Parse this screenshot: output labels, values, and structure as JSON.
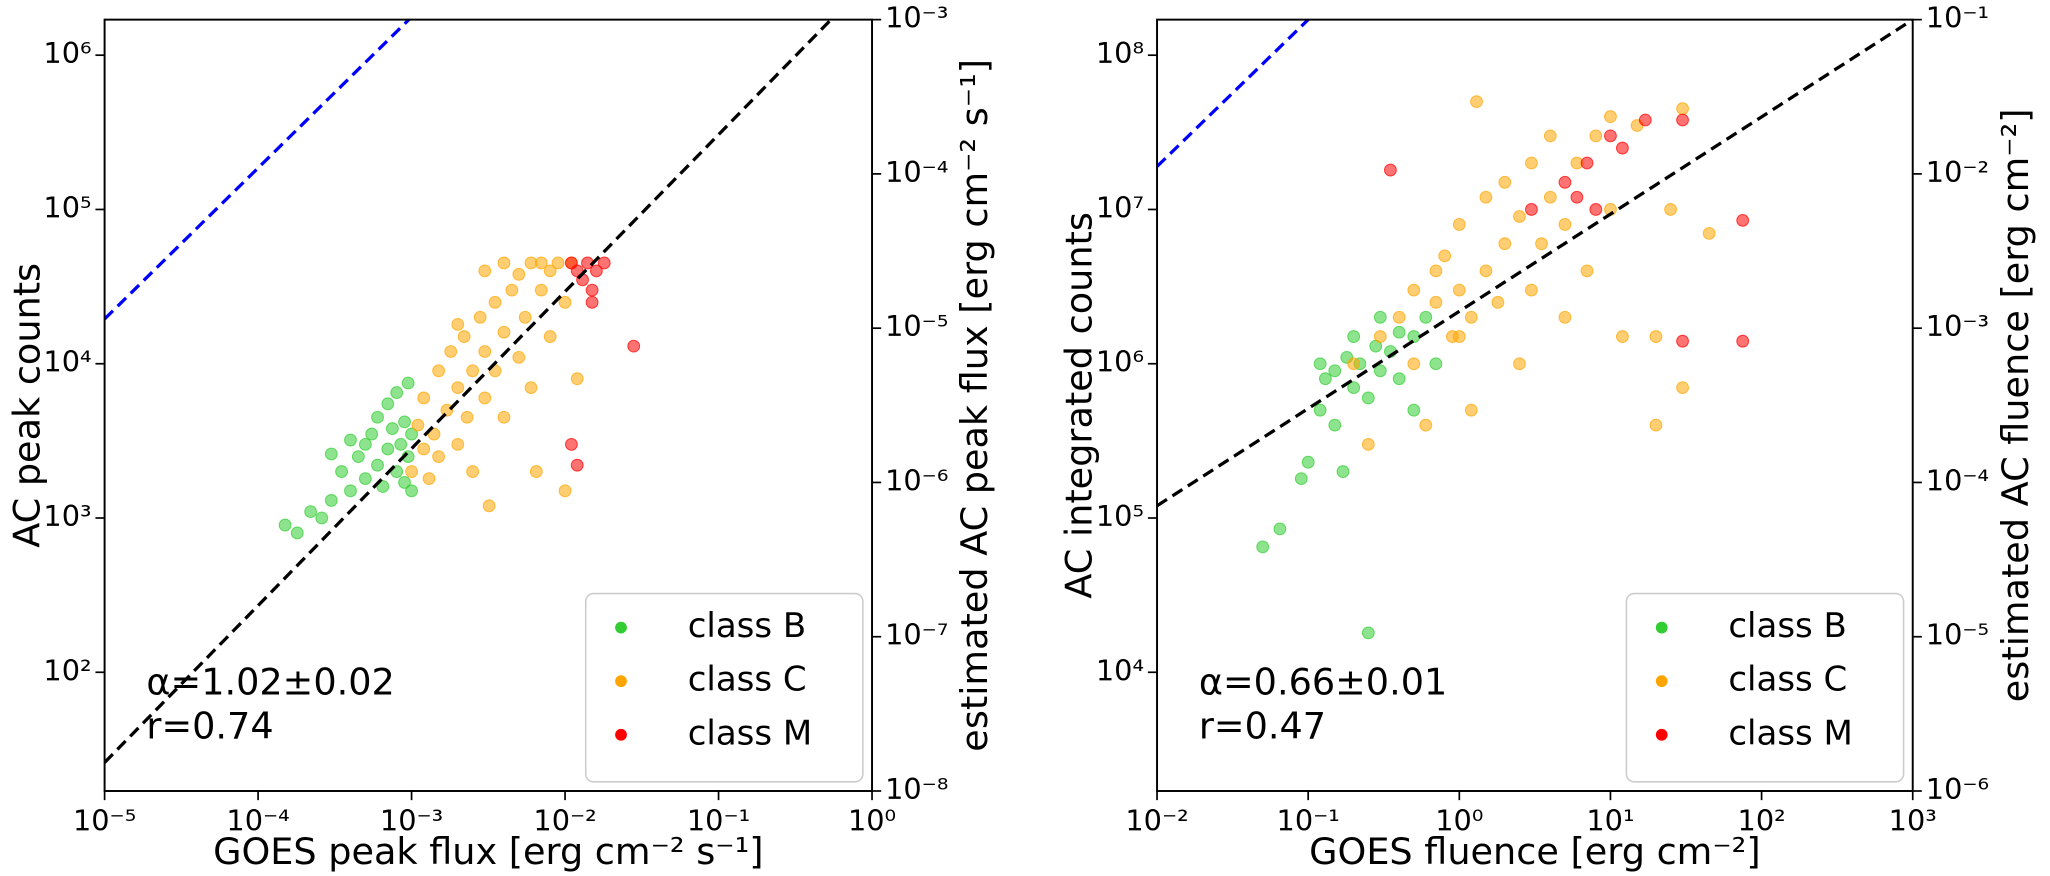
{
  "chart_data": [
    {
      "type": "scatter",
      "log_x": true,
      "log_y": true,
      "x_label": "GOES peak flux [erg cm⁻² s⁻¹]",
      "y_label": "AC peak counts",
      "y2_label": "estimated AC peak flux [erg cm⁻² s⁻¹]",
      "xlim": [
        1e-05,
        1
      ],
      "ylim": [
        17,
        1700000
      ],
      "y2lim": [
        1e-08,
        0.001
      ],
      "xticks": [
        {
          "value": 1e-05,
          "label": "10⁻⁵"
        },
        {
          "value": 0.0001,
          "label": "10⁻⁴"
        },
        {
          "value": 0.001,
          "label": "10⁻³"
        },
        {
          "value": 0.01,
          "label": "10⁻²"
        },
        {
          "value": 0.1,
          "label": "10⁻¹"
        },
        {
          "value": 1,
          "label": "10⁰"
        }
      ],
      "yticks": [
        {
          "value": 100,
          "label": "10²"
        },
        {
          "value": 1000,
          "label": "10³"
        },
        {
          "value": 10000,
          "label": "10⁴"
        },
        {
          "value": 100000,
          "label": "10⁵"
        },
        {
          "value": 1000000,
          "label": "10⁶"
        }
      ],
      "y2ticks": [
        {
          "value": 1e-08,
          "label": "10⁻⁸"
        },
        {
          "value": 1e-07,
          "label": "10⁻⁷"
        },
        {
          "value": 1e-06,
          "label": "10⁻⁶"
        },
        {
          "value": 1e-05,
          "label": "10⁻⁵"
        },
        {
          "value": 0.0001,
          "label": "10⁻⁴"
        },
        {
          "value": 0.001,
          "label": "10⁻³"
        }
      ],
      "legend_loc": "lower right",
      "annotations": [
        "α=1.02±0.02",
        "r=0.74"
      ],
      "series": [
        {
          "name": "class B",
          "color": "#32cd32",
          "x": [
            0.00015,
            0.00018,
            0.00022,
            0.00026,
            0.0003,
            0.00035,
            0.0004,
            0.00045,
            0.0005,
            0.0005,
            0.00055,
            0.0006,
            0.0006,
            0.00065,
            0.0007,
            0.0007,
            0.00075,
            0.0008,
            0.0008,
            0.00085,
            0.0009,
            0.0009,
            0.00095,
            0.00095,
            0.001,
            0.001,
            0.0003,
            0.0004
          ],
          "values": [
            900,
            800,
            1100,
            1000,
            1300,
            2000,
            1500,
            2500,
            3000,
            1800,
            3500,
            2200,
            4500,
            1600,
            2800,
            5500,
            3800,
            2000,
            6500,
            3000,
            4200,
            1700,
            2500,
            7500,
            3500,
            1500,
            2600,
            3200
          ]
        },
        {
          "name": "class C",
          "color": "#ffa500",
          "x": [
            0.001,
            0.0011,
            0.0012,
            0.0012,
            0.0013,
            0.0014,
            0.0015,
            0.0015,
            0.0017,
            0.0018,
            0.002,
            0.002,
            0.0022,
            0.0023,
            0.0025,
            0.0025,
            0.0028,
            0.003,
            0.003,
            0.0032,
            0.0035,
            0.0035,
            0.004,
            0.004,
            0.0045,
            0.005,
            0.005,
            0.0055,
            0.006,
            0.006,
            0.0065,
            0.007,
            0.007,
            0.008,
            0.008,
            0.009,
            0.01,
            0.01,
            0.011,
            0.012,
            0.002,
            0.003,
            0.004
          ],
          "values": [
            2000,
            4000,
            2800,
            6000,
            1800,
            3500,
            9000,
            2500,
            5000,
            12000,
            3000,
            7000,
            15000,
            4500,
            9000,
            2000,
            20000,
            6000,
            12000,
            1200,
            25000,
            9000,
            16000,
            4500,
            30000,
            11000,
            38000,
            20000,
            45000,
            7000,
            2000,
            30000,
            45000,
            15000,
            40000,
            45000,
            1500,
            25000,
            45000,
            8000,
            18000,
            40000,
            45000
          ]
        },
        {
          "name": "class M",
          "color": "#ff0000",
          "x": [
            0.011,
            0.012,
            0.013,
            0.014,
            0.015,
            0.016,
            0.018,
            0.028,
            0.011,
            0.012,
            0.015
          ],
          "values": [
            45000,
            40000,
            35000,
            45000,
            30000,
            40000,
            45000,
            13000,
            3000,
            2200,
            25000
          ]
        }
      ],
      "lines": [
        {
          "color": "#000000",
          "x": [
            1e-05,
            0.54
          ],
          "values": [
            26,
            1700000
          ]
        },
        {
          "color": "#0000ff",
          "x": [
            1e-05,
            0.00096
          ],
          "values": [
            19500,
            1700000
          ]
        }
      ]
    },
    {
      "type": "scatter",
      "log_x": true,
      "log_y": true,
      "x_label": "GOES fluence [erg cm⁻²]",
      "y_label": "AC integrated counts",
      "y2_label": "estimated AC fluence [erg cm⁻²]",
      "xlim": [
        0.01,
        1000
      ],
      "ylim": [
        1700,
        170000000
      ],
      "y2lim": [
        1e-06,
        0.1
      ],
      "xticks": [
        {
          "value": 0.01,
          "label": "10⁻²"
        },
        {
          "value": 0.1,
          "label": "10⁻¹"
        },
        {
          "value": 1,
          "label": "10⁰"
        },
        {
          "value": 10,
          "label": "10¹"
        },
        {
          "value": 100,
          "label": "10²"
        },
        {
          "value": 1000,
          "label": "10³"
        }
      ],
      "yticks": [
        {
          "value": 10000,
          "label": "10⁴"
        },
        {
          "value": 100000,
          "label": "10⁵"
        },
        {
          "value": 1000000,
          "label": "10⁶"
        },
        {
          "value": 10000000,
          "label": "10⁷"
        },
        {
          "value": 100000000,
          "label": "10⁸"
        }
      ],
      "y2ticks": [
        {
          "value": 1e-06,
          "label": "10⁻⁶"
        },
        {
          "value": 1e-05,
          "label": "10⁻⁵"
        },
        {
          "value": 0.0001,
          "label": "10⁻⁴"
        },
        {
          "value": 0.001,
          "label": "10⁻³"
        },
        {
          "value": 0.01,
          "label": "10⁻²"
        },
        {
          "value": 0.1,
          "label": "10⁻¹"
        }
      ],
      "legend_loc": "lower right",
      "annotations": [
        "α=0.66±0.01",
        "r=0.47"
      ],
      "series": [
        {
          "name": "class B",
          "color": "#32cd32",
          "x": [
            0.05,
            0.065,
            0.09,
            0.1,
            0.12,
            0.13,
            0.15,
            0.15,
            0.18,
            0.2,
            0.2,
            0.22,
            0.25,
            0.25,
            0.28,
            0.3,
            0.3,
            0.35,
            0.4,
            0.4,
            0.5,
            0.5,
            0.6,
            0.7,
            0.12,
            0.17
          ],
          "values": [
            65000,
            85000,
            180000,
            230000,
            500000,
            800000,
            900000,
            400000,
            1100000,
            700000,
            1500000,
            1000000,
            18000,
            600000,
            1300000,
            900000,
            2000000,
            1200000,
            800000,
            1600000,
            500000,
            1500000,
            2000000,
            1000000,
            1000000,
            200000
          ]
        },
        {
          "name": "class C",
          "color": "#ffa500",
          "x": [
            0.2,
            0.25,
            0.3,
            0.4,
            0.5,
            0.5,
            0.6,
            0.7,
            0.8,
            0.9,
            1,
            1,
            1.2,
            1.2,
            1.3,
            1.5,
            1.5,
            1.8,
            2,
            2,
            2.5,
            2.5,
            3,
            3,
            3.5,
            4,
            4,
            5,
            5,
            6,
            7,
            8,
            10,
            10,
            12,
            15,
            20,
            20,
            30,
            30,
            45,
            25,
            1,
            0.7
          ],
          "values": [
            1000000,
            300000,
            1500000,
            2000000,
            1000000,
            3000000,
            400000,
            2500000,
            5000000,
            1500000,
            3000000,
            8000000,
            500000,
            2000000,
            50000000,
            4000000,
            12000000,
            2500000,
            6000000,
            15000000,
            1000000,
            9000000,
            3000000,
            20000000,
            6000000,
            12000000,
            30000000,
            2000000,
            8000000,
            20000000,
            4000000,
            30000000,
            10000000,
            40000000,
            1500000,
            35000000,
            400000,
            1500000,
            700000,
            45000000,
            7000000,
            10000000,
            1500000,
            4000000
          ]
        },
        {
          "name": "class M",
          "color": "#ff0000",
          "x": [
            0.35,
            3,
            5,
            6,
            7,
            8,
            10,
            12,
            17,
            30,
            30,
            75,
            75
          ],
          "values": [
            18000000,
            10000000,
            15000000,
            12000000,
            20000000,
            10000000,
            30000000,
            25000000,
            38000000,
            38000000,
            1400000,
            8500000,
            1400000
          ]
        }
      ],
      "lines": [
        {
          "color": "#000000",
          "x": [
            0.01,
            1000
          ],
          "values": [
            120000,
            170000000
          ]
        },
        {
          "color": "#0000ff",
          "x": [
            0.01,
            0.1
          ],
          "values": [
            19000000,
            170000000
          ]
        }
      ]
    }
  ]
}
